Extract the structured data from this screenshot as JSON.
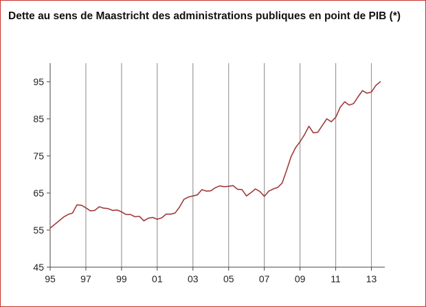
{
  "title": "Dette au sens de Maastricht des administrations publiques en point de PIB (*)",
  "colors": {
    "frame_border": "#c9302c",
    "line": "#a0393a",
    "axis": "#444444",
    "gridline": "#9a9a9a"
  },
  "chart_data": {
    "type": "line",
    "title": "Dette au sens de Maastricht des administrations publiques en point de PIB (*)",
    "xlabel": "",
    "ylabel": "",
    "xlim": [
      1995,
      2013.75
    ],
    "ylim": [
      45,
      100
    ],
    "yticks": [
      45,
      55,
      65,
      75,
      85,
      95
    ],
    "xticks": [
      {
        "value": 1995,
        "label": "95"
      },
      {
        "value": 1997,
        "label": "97"
      },
      {
        "value": 1999,
        "label": "99"
      },
      {
        "value": 2001,
        "label": "01"
      },
      {
        "value": 2003,
        "label": "03"
      },
      {
        "value": 2005,
        "label": "05"
      },
      {
        "value": 2007,
        "label": "07"
      },
      {
        "value": 2009,
        "label": "09"
      },
      {
        "value": 2011,
        "label": "11"
      },
      {
        "value": 2013,
        "label": "13"
      }
    ],
    "vertical_gridlines_at": [
      1997,
      1999,
      2001,
      2003,
      2005,
      2007,
      2009,
      2011,
      2013
    ],
    "grid": "vertical",
    "series": [
      {
        "x": [
          1995.0,
          1995.25,
          1995.5,
          1995.75,
          1996.0,
          1996.25,
          1996.5,
          1996.75,
          1997.0,
          1997.25,
          1997.5,
          1997.75,
          1998.0,
          1998.25,
          1998.5,
          1998.75,
          1999.0,
          1999.25,
          1999.5,
          1999.75,
          2000.0,
          2000.25,
          2000.5,
          2000.75,
          2001.0,
          2001.25,
          2001.5,
          2001.75,
          2002.0,
          2002.25,
          2002.5,
          2002.75,
          2003.0,
          2003.25,
          2003.5,
          2003.75,
          2004.0,
          2004.25,
          2004.5,
          2004.75,
          2005.0,
          2005.25,
          2005.5,
          2005.75,
          2006.0,
          2006.25,
          2006.5,
          2006.75,
          2007.0,
          2007.25,
          2007.5,
          2007.75,
          2008.0,
          2008.25,
          2008.5,
          2008.75,
          2009.0,
          2009.25,
          2009.5,
          2009.75,
          2010.0,
          2010.25,
          2010.5,
          2010.75,
          2011.0,
          2011.25,
          2011.5,
          2011.75,
          2012.0,
          2012.25,
          2012.5,
          2012.75,
          2013.0,
          2013.25,
          2013.5
        ],
        "values": [
          55.5,
          56.5,
          57.5,
          58.5,
          59.2,
          59.6,
          61.8,
          61.7,
          61.0,
          60.2,
          60.3,
          61.3,
          60.9,
          60.8,
          60.3,
          60.4,
          59.9,
          59.2,
          59.2,
          58.6,
          58.7,
          57.5,
          58.2,
          58.4,
          57.9,
          58.3,
          59.3,
          59.3,
          59.6,
          61.2,
          63.3,
          63.9,
          64.2,
          64.5,
          65.9,
          65.5,
          65.6,
          66.4,
          66.9,
          66.7,
          66.8,
          67.0,
          66.0,
          65.9,
          64.2,
          65.1,
          66.1,
          65.4,
          64.1,
          65.5,
          66.1,
          66.5,
          67.7,
          71.1,
          74.8,
          77.2,
          78.8,
          80.7,
          83.0,
          81.2,
          81.4,
          83.2,
          85.0,
          84.2,
          85.4,
          88.1,
          89.6,
          88.7,
          89.1,
          90.9,
          92.6,
          91.9,
          92.2,
          94.0,
          95.0
        ]
      }
    ]
  }
}
